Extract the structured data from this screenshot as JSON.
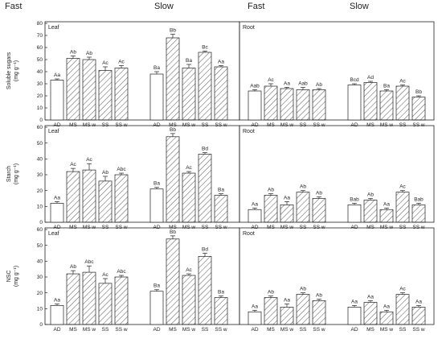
{
  "header": {
    "left_fast": "Fast",
    "left_slow": "Slow",
    "right_fast": "Fast",
    "right_slow": "Slow"
  },
  "chart_data": [
    {
      "type": "bar",
      "ylabel_main": "Soluble sugars",
      "ylabel_unit": "(mg g⁻¹)",
      "ylim": [
        0,
        80
      ],
      "yticks": [
        0,
        10,
        20,
        30,
        40,
        50,
        60,
        70,
        80
      ],
      "panels": [
        {
          "label": "Leaf",
          "groups": [
            {
              "name": "Fast",
              "categories": [
                "AD",
                "MS",
                "MS w",
                "SS",
                "SS w"
              ],
              "values": [
                33,
                51,
                50,
                41,
                43
              ],
              "errors": [
                1,
                2,
                2,
                3,
                2
              ],
              "letters": [
                "Aa",
                "Ab",
                "Ab",
                "Ac",
                "Ac"
              ]
            },
            {
              "name": "Slow",
              "categories": [
                "AD",
                "MS",
                "MS w",
                "SS",
                "SS w"
              ],
              "values": [
                38,
                68,
                43,
                56,
                44
              ],
              "errors": [
                2,
                3,
                3,
                1,
                1
              ],
              "letters": [
                "Ba",
                "Bb",
                "Ba",
                "Bc",
                "Aa"
              ]
            }
          ]
        },
        {
          "label": "Root",
          "groups": [
            {
              "name": "Fast",
              "categories": [
                "AD",
                "MS",
                "MS w",
                "SS",
                "SS w"
              ],
              "values": [
                24,
                28,
                26,
                25,
                25
              ],
              "errors": [
                1,
                2,
                1,
                2,
                1
              ],
              "letters": [
                "Aab",
                "Ac",
                "Aa",
                "Aab",
                "Ab"
              ]
            },
            {
              "name": "Slow",
              "categories": [
                "AD",
                "MS",
                "MS w",
                "SS",
                "SS w"
              ],
              "values": [
                29,
                31,
                24,
                28,
                19
              ],
              "errors": [
                1,
                1,
                1,
                1,
                1
              ],
              "letters": [
                "Bcd",
                "Ad",
                "Ba",
                "Ac",
                "Bb"
              ]
            }
          ]
        }
      ]
    },
    {
      "type": "bar",
      "ylabel_main": "Starch",
      "ylabel_unit": "(mg g⁻¹)",
      "ylim": [
        0,
        60
      ],
      "yticks": [
        0,
        10,
        20,
        30,
        40,
        50,
        60
      ],
      "panels": [
        {
          "label": "Leaf",
          "groups": [
            {
              "name": "Fast",
              "categories": [
                "AD",
                "MS",
                "MS w",
                "SS",
                "SS w"
              ],
              "values": [
                12,
                32,
                33,
                26,
                30
              ],
              "errors": [
                1,
                2,
                4,
                3,
                1
              ],
              "letters": [
                "Aa",
                "Ac",
                "Ac",
                "Ab",
                "Abc"
              ]
            },
            {
              "name": "Slow",
              "categories": [
                "AD",
                "MS",
                "MS w",
                "SS",
                "SS w"
              ],
              "values": [
                21,
                54,
                31,
                43,
                17
              ],
              "errors": [
                1,
                2,
                1,
                1,
                1
              ],
              "letters": [
                "Ba",
                "Bb",
                "Ac",
                "Bd",
                "Ba"
              ]
            }
          ]
        },
        {
          "label": "Root",
          "groups": [
            {
              "name": "Fast",
              "categories": [
                "AD",
                "MS",
                "MS w",
                "SS",
                "SS w"
              ],
              "values": [
                8,
                17,
                11,
                19,
                15
              ],
              "errors": [
                1,
                1,
                2,
                1,
                1
              ],
              "letters": [
                "Aa",
                "Ab",
                "Aa",
                "Ab",
                "Ab"
              ]
            },
            {
              "name": "Slow",
              "categories": [
                "AD",
                "MS",
                "MS w",
                "SS",
                "SS w"
              ],
              "values": [
                11,
                14,
                8,
                19,
                11
              ],
              "errors": [
                1,
                1,
                1,
                1,
                1
              ],
              "letters": [
                "Bab",
                "Ab",
                "Aa",
                "Ac",
                "Bab"
              ]
            }
          ]
        }
      ]
    },
    {
      "type": "bar",
      "ylabel_main": "NSC",
      "ylabel_unit": "(mg g⁻¹)",
      "ylim": [
        0,
        60
      ],
      "yticks": [
        0,
        10,
        20,
        30,
        40,
        50,
        60
      ],
      "panels": [
        {
          "label": "Leaf",
          "groups": [
            {
              "name": "Fast",
              "categories": [
                "AD",
                "MS",
                "MS w",
                "SS",
                "SS w"
              ],
              "values": [
                12,
                32,
                33,
                26,
                30
              ],
              "errors": [
                1,
                2,
                4,
                3,
                1
              ],
              "letters": [
                "Aa",
                "Ab",
                "Abc",
                "Ac",
                "Abc"
              ]
            },
            {
              "name": "Slow",
              "categories": [
                "AD",
                "MS",
                "MS w",
                "SS",
                "SS w"
              ],
              "values": [
                21,
                54,
                31,
                43,
                17
              ],
              "errors": [
                1,
                2,
                1,
                2,
                1
              ],
              "letters": [
                "Ba",
                "Bb",
                "Ac",
                "Bd",
                "Ba"
              ]
            }
          ]
        },
        {
          "label": "Root",
          "groups": [
            {
              "name": "Fast",
              "categories": [
                "AD",
                "MS",
                "MS w",
                "SS",
                "SS w"
              ],
              "values": [
                8,
                17,
                11,
                19,
                15
              ],
              "errors": [
                1,
                1,
                2,
                1,
                1
              ],
              "letters": [
                "Aa",
                "Ab",
                "Aa",
                "Ab",
                "Ab"
              ]
            },
            {
              "name": "Slow",
              "categories": [
                "AD",
                "MS",
                "MS w",
                "SS",
                "SS w"
              ],
              "values": [
                11,
                14,
                8,
                19,
                11
              ],
              "errors": [
                1,
                1,
                1,
                1,
                1
              ],
              "letters": [
                "Aa",
                "Aa",
                "Aa",
                "Ac",
                "Aa"
              ]
            }
          ]
        }
      ]
    }
  ]
}
